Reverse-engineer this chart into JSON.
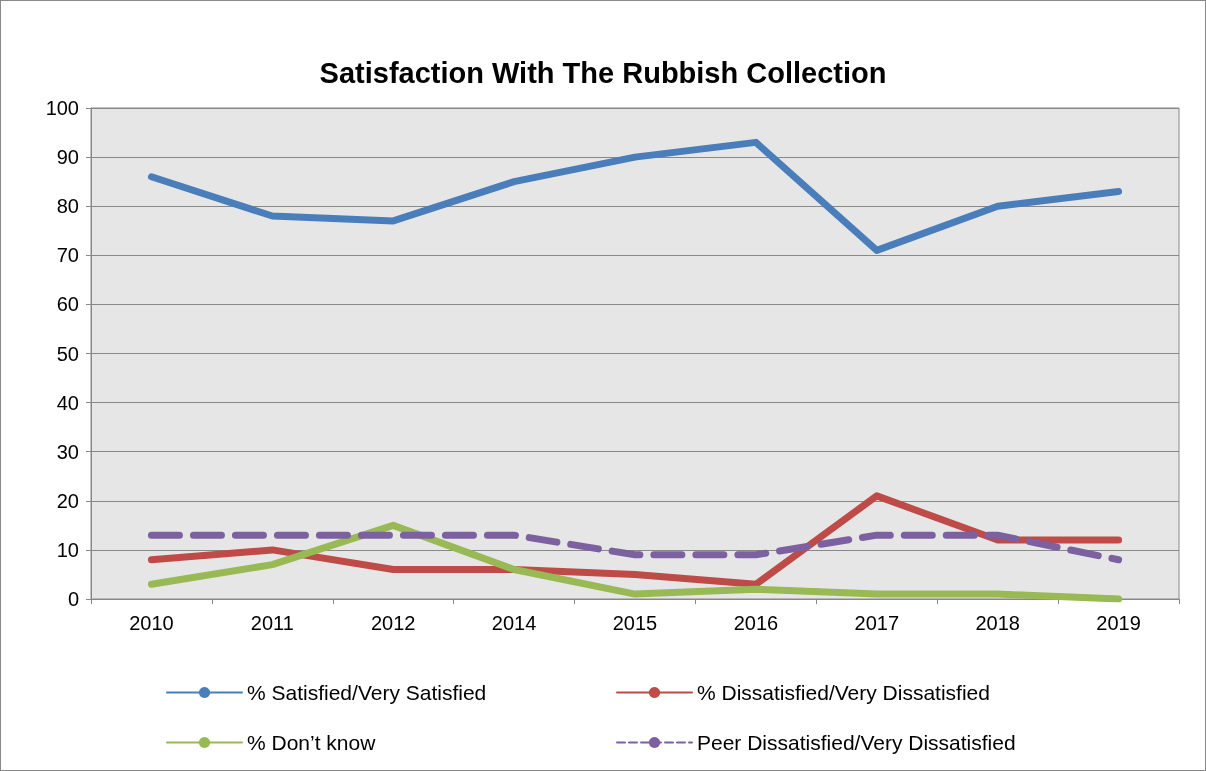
{
  "chart_data": {
    "type": "line",
    "title": "Satisfaction With The Rubbish Collection",
    "categories": [
      "2010",
      "2011",
      "2012",
      "2014",
      "2015",
      "2016",
      "2017",
      "2018",
      "2019"
    ],
    "series": [
      {
        "name": "% Satisfied/Very Satisfied",
        "color": "#4a7ebb",
        "values": [
          86,
          78,
          77,
          85,
          90,
          93,
          71,
          80,
          83
        ]
      },
      {
        "name": "% Dissatisfied/Very Dissatisfied",
        "color": "#be4b48",
        "values": [
          8,
          10,
          6,
          6,
          5,
          3,
          21,
          12,
          12
        ]
      },
      {
        "name": "% Don’t know",
        "color": "#98b954",
        "values": [
          3,
          7,
          15,
          6,
          1,
          2,
          1,
          1,
          0
        ]
      },
      {
        "name": "Peer Dissatisfied/Very Dissatisfied",
        "color": "#7d60a0",
        "values": [
          13,
          13,
          13,
          13,
          9,
          9,
          13,
          13,
          8
        ],
        "line_style": "dashed"
      }
    ],
    "ylim": [
      0,
      100
    ],
    "yticks": [
      0,
      10,
      20,
      30,
      40,
      50,
      60,
      70,
      80,
      90,
      100
    ],
    "grid": "y",
    "legend": "bottom",
    "marker": "none",
    "line_style": "solid"
  }
}
